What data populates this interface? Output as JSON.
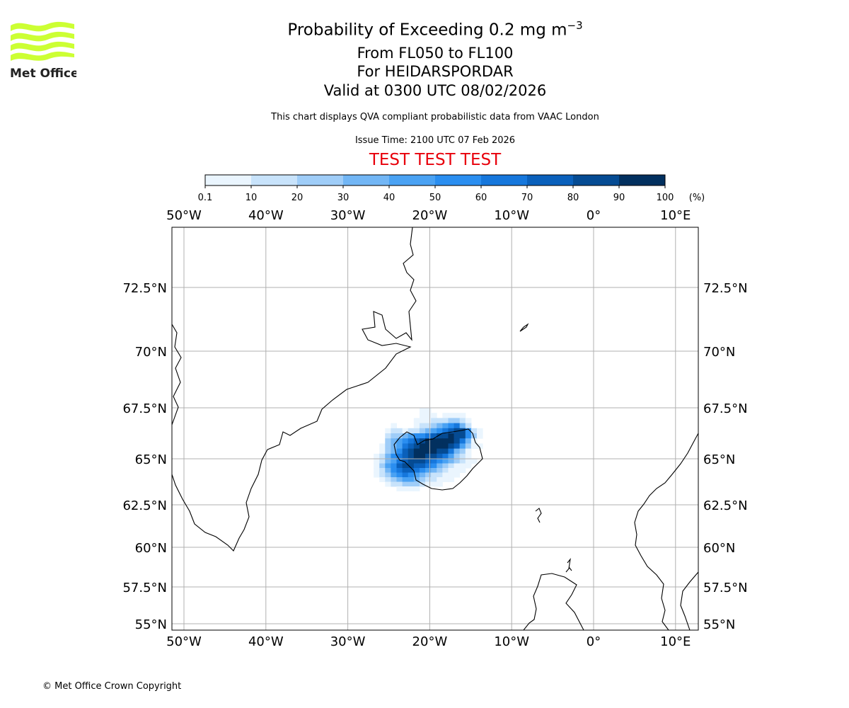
{
  "logo": {
    "text": "Met Office",
    "color": "#ccff33"
  },
  "title": {
    "main": "Probability of Exceeding 0.2 mg m",
    "main_sup": "−3",
    "levels": "From FL050 to FL100",
    "volcano": "For HEIDARSPORDAR",
    "valid": "Valid at 0300 UTC 08/02/2026"
  },
  "subtitle": "This chart displays QVA compliant probabilistic data from VAAC London",
  "issue_time": "Issue Time: 2100 UTC 07 Feb 2026",
  "test_banner": "TEST TEST TEST",
  "copyright": "© Met Office Crown Copyright",
  "colorbar": {
    "ticks": [
      "0.1",
      "10",
      "20",
      "30",
      "40",
      "50",
      "60",
      "70",
      "80",
      "90",
      "100"
    ],
    "unit": "(%)",
    "colors": [
      "#eaf5fe",
      "#c8e3fb",
      "#9fcdf8",
      "#72b6f5",
      "#4aa2f3",
      "#2a8ef0",
      "#1677dc",
      "#0a60bb",
      "#054b93",
      "#02305f"
    ]
  },
  "chart_data": {
    "type": "heatmap",
    "title": "Probability of Exceeding 0.2 mg m−3",
    "lon_ticks": [
      {
        "value": -50,
        "label": "50°W"
      },
      {
        "value": -40,
        "label": "40°W"
      },
      {
        "value": -30,
        "label": "30°W"
      },
      {
        "value": -20,
        "label": "20°W"
      },
      {
        "value": -10,
        "label": "10°W"
      },
      {
        "value": 0,
        "label": "0°"
      },
      {
        "value": 10,
        "label": "10°E"
      }
    ],
    "lat_ticks": [
      {
        "value": 72.5,
        "label": "72.5°N"
      },
      {
        "value": 70,
        "label": "70°N"
      },
      {
        "value": 67.5,
        "label": "67.5°N"
      },
      {
        "value": 65,
        "label": "65°N"
      },
      {
        "value": 62.5,
        "label": "62.5°N"
      },
      {
        "value": 60,
        "label": "60°N"
      },
      {
        "value": 57.5,
        "label": "57.5°N"
      },
      {
        "value": 55,
        "label": "55°N"
      }
    ],
    "lon_range": [
      -51.5,
      12.7
    ],
    "lat_range": [
      54.6,
      74.8
    ],
    "grid": true,
    "probability_grid": {
      "lon_start": -26.5,
      "lon_step": 0.7,
      "lat_start": 67.375,
      "lat_step": -0.25,
      "encoding": "char = colour bin index (1-9, a=90-100%), '.' = below 0.1%",
      "rows": [
        "........11..........",
        "........111.1111....",
        ".......1112223321...",
        "...1...1223456742...",
        "..12212234567899621.",
        "..23345667899a99631.",
        "..3456789aaaaa9741..",
        ".1345789aaaaa985311.",
        ".134689aaaa997431...",
        "1246789aa99875321...",
        "124578999876543211..",
        "13568998876432111...",
        "1246788765432111....",
        "123567654322111.....",
        ".1234554322111......",
        "..1223332111........",
        "....1111............"
      ]
    }
  }
}
